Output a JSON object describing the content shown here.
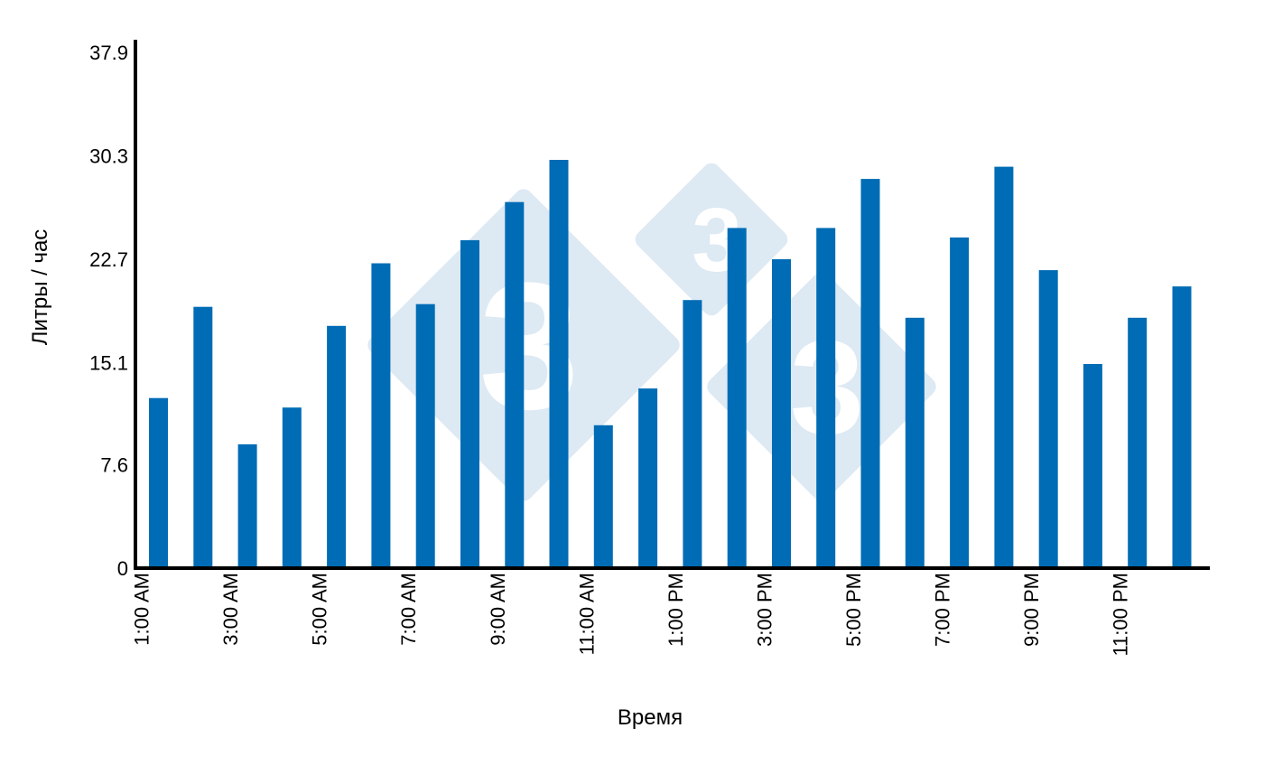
{
  "chart_data": {
    "type": "bar",
    "title": "",
    "xlabel": "Время",
    "ylabel": "Литры /  час",
    "ylim": [
      0,
      37.9
    ],
    "yticks": [
      "0",
      "7.6",
      "15.1",
      "22.7",
      "30.3",
      "37.9"
    ],
    "bar_color": "#006cb5",
    "watermark_color": "#dde9f3",
    "grid": false,
    "categories": [
      "1:00 AM",
      "2:00 AM",
      "3:00 AM",
      "4:00 AM",
      "5:00 AM",
      "6:00 AM",
      "7:00 AM",
      "8:00 AM",
      "9:00 AM",
      "10:00 AM",
      "11:00 AM",
      "12:00 PM",
      "1:00 PM",
      "2:00 PM",
      "3:00 PM",
      "4:00 PM",
      "5:00 PM",
      "6:00 PM",
      "7:00 PM",
      "8:00 PM",
      "9:00 PM",
      "10:00 PM",
      "11:00 PM",
      "12:00 AM"
    ],
    "xtick_labels": [
      "1:00 AM",
      "",
      "3:00 AM",
      "",
      "5:00 AM",
      "",
      "7:00 AM",
      "",
      "9:00 AM",
      "",
      "11:00 AM",
      "",
      "1:00 PM",
      "",
      "3:00 PM",
      "",
      "5:00 PM",
      "",
      "7:00 PM",
      "",
      "9:00 PM",
      "",
      "11:00 PM",
      ""
    ],
    "values": [
      12.5,
      19.2,
      9.1,
      11.8,
      17.8,
      22.4,
      19.4,
      24.1,
      26.9,
      30.0,
      10.5,
      13.2,
      19.7,
      25.0,
      22.7,
      25.0,
      28.6,
      18.4,
      24.3,
      29.5,
      21.9,
      15.0,
      18.4,
      20.7
    ]
  }
}
